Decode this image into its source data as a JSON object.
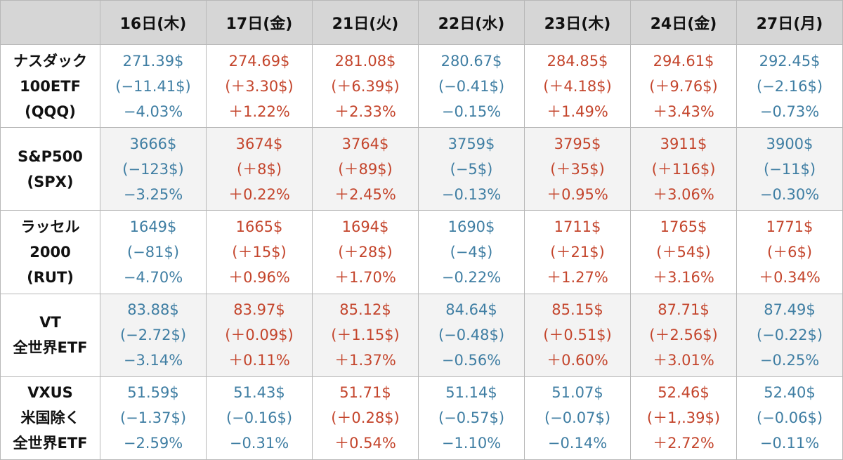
{
  "columns": [
    "16日(木)",
    "17日(金)",
    "21日(火)",
    "22日(水)",
    "23日(木)",
    "24日(金)",
    "27日(月)"
  ],
  "colors": {
    "up": "#c4452c",
    "down": "#3f7ea3",
    "header_bg": "#d6d6d6"
  },
  "rows": [
    {
      "label": [
        "ナスダック",
        "100ETF",
        "(QQQ)"
      ],
      "cells": [
        {
          "trend": "down",
          "price": "271.39$",
          "change": "(−11.41$)",
          "pct": "−4.03%"
        },
        {
          "trend": "up",
          "price": "274.69$",
          "change": "(＋3.30$)",
          "pct": "＋1.22%"
        },
        {
          "trend": "up",
          "price": "281.08$",
          "change": "(＋6.39$)",
          "pct": "＋2.33%"
        },
        {
          "trend": "down",
          "price": "280.67$",
          "change": "(−0.41$)",
          "pct": "−0.15%"
        },
        {
          "trend": "up",
          "price": "284.85$",
          "change": "(＋4.18$)",
          "pct": "＋1.49%"
        },
        {
          "trend": "up",
          "price": "294.61$",
          "change": "(＋9.76$)",
          "pct": "＋3.43%"
        },
        {
          "trend": "down",
          "price": "292.45$",
          "change": "(−2.16$)",
          "pct": "−0.73%"
        }
      ]
    },
    {
      "label": [
        "S&P500",
        "(SPX)"
      ],
      "cells": [
        {
          "trend": "down",
          "price": "3666$",
          "change": "(−123$)",
          "pct": "−3.25%"
        },
        {
          "trend": "up",
          "price": "3674$",
          "change": "(＋8$)",
          "pct": "＋0.22%"
        },
        {
          "trend": "up",
          "price": "3764$",
          "change": "(＋89$)",
          "pct": "＋2.45%"
        },
        {
          "trend": "down",
          "price": "3759$",
          "change": "(−5$)",
          "pct": "−0.13%"
        },
        {
          "trend": "up",
          "price": "3795$",
          "change": "(＋35$)",
          "pct": "＋0.95%"
        },
        {
          "trend": "up",
          "price": "3911$",
          "change": "(＋116$)",
          "pct": "＋3.06%"
        },
        {
          "trend": "down",
          "price": "3900$",
          "change": "(−11$)",
          "pct": "−0.30%"
        }
      ]
    },
    {
      "label": [
        "ラッセル",
        "2000",
        "(RUT)"
      ],
      "cells": [
        {
          "trend": "down",
          "price": "1649$",
          "change": "(−81$)",
          "pct": "−4.70%"
        },
        {
          "trend": "up",
          "price": "1665$",
          "change": "(＋15$)",
          "pct": "＋0.96%"
        },
        {
          "trend": "up",
          "price": "1694$",
          "change": "(＋28$)",
          "pct": "＋1.70%"
        },
        {
          "trend": "down",
          "price": "1690$",
          "change": "(−4$)",
          "pct": "−0.22%"
        },
        {
          "trend": "up",
          "price": "1711$",
          "change": "(＋21$)",
          "pct": "＋1.27%"
        },
        {
          "trend": "up",
          "price": "1765$",
          "change": "(＋54$)",
          "pct": "＋3.16%"
        },
        {
          "trend": "up",
          "price": "1771$",
          "change": "(＋6$)",
          "pct": "＋0.34%"
        }
      ]
    },
    {
      "label": [
        "VT",
        "全世界ETF"
      ],
      "cells": [
        {
          "trend": "down",
          "price": "83.88$",
          "change": "(−2.72$)",
          "pct": "−3.14%"
        },
        {
          "trend": "up",
          "price": "83.97$",
          "change": "(＋0.09$)",
          "pct": "＋0.11%"
        },
        {
          "trend": "up",
          "price": "85.12$",
          "change": "(＋1.15$)",
          "pct": "＋1.37%"
        },
        {
          "trend": "down",
          "price": "84.64$",
          "change": "(−0.48$)",
          "pct": "−0.56%"
        },
        {
          "trend": "up",
          "price": "85.15$",
          "change": "(＋0.51$)",
          "pct": "＋0.60%"
        },
        {
          "trend": "up",
          "price": "87.71$",
          "change": "(＋2.56$)",
          "pct": "＋3.01%"
        },
        {
          "trend": "down",
          "price": "87.49$",
          "change": "(−0.22$)",
          "pct": "−0.25%"
        }
      ]
    },
    {
      "label": [
        "VXUS",
        "米国除く",
        "全世界ETF"
      ],
      "cells": [
        {
          "trend": "down",
          "price": "51.59$",
          "change": "(−1.37$)",
          "pct": "−2.59%"
        },
        {
          "trend": "down",
          "price": "51.43$",
          "change": "(−0.16$)",
          "pct": "−0.31%"
        },
        {
          "trend": "up",
          "price": "51.71$",
          "change": "(＋0.28$)",
          "pct": "＋0.54%"
        },
        {
          "trend": "down",
          "price": "51.14$",
          "change": "(−0.57$)",
          "pct": "−1.10%"
        },
        {
          "trend": "down",
          "price": "51.07$",
          "change": "(−0.07$)",
          "pct": "−0.14%"
        },
        {
          "trend": "up",
          "price": "52.46$",
          "change": "(＋1,.39$)",
          "pct": "＋2.72%"
        },
        {
          "trend": "down",
          "price": "52.40$",
          "change": "(−0.06$)",
          "pct": "−0.11%"
        }
      ]
    }
  ]
}
